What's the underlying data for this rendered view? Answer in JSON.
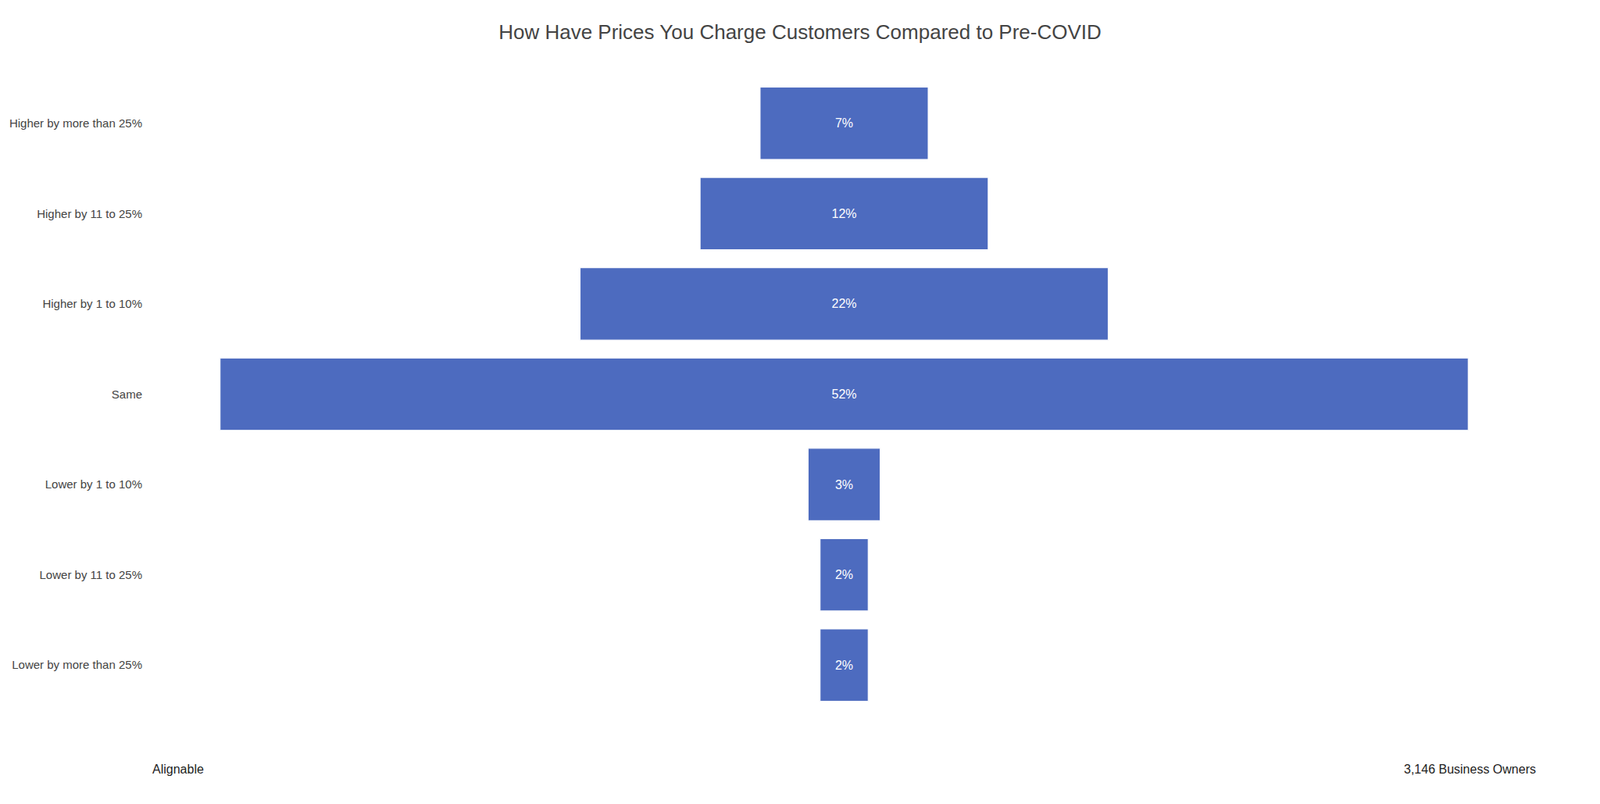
{
  "chart_data": {
    "type": "funnel",
    "orientation": "horizontal",
    "title": "How Have Prices You Charge Customers Compared to Pre-COVID",
    "categories": [
      "Higher by more than 25%",
      "Higher by 11 to 25%",
      "Higher by 1 to 10%",
      "Same",
      "Lower by 1 to 10%",
      "Lower by 11 to 25%",
      "Lower by more than 25%"
    ],
    "values": [
      7,
      12,
      22,
      52,
      3,
      2,
      2
    ],
    "value_labels": [
      "7%",
      "12%",
      "22%",
      "52%",
      "3%",
      "2%",
      "2%"
    ],
    "data_labels": true,
    "color": "#4d6bbf",
    "tick_labels": "y",
    "grid": false,
    "annotations": [
      "Alignable",
      "3,146 Business Owners"
    ]
  }
}
